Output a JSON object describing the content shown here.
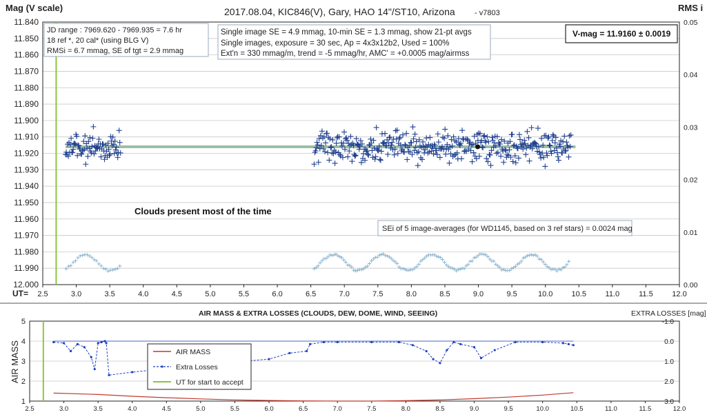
{
  "chart_data": [
    {
      "type": "scatter",
      "title": "2017.08.04,  KIC846(V),  Gary,  HAO  14\"/ST10,  Arizona",
      "version": "- v7803",
      "ylabel_left": "Mag (V scale)",
      "ylabel_right": "RMS i",
      "xlabel": "UT=",
      "x_range": [
        2.5,
        12.0
      ],
      "x_ticks": [
        "2.5",
        "3.0",
        "3.5",
        "4.0",
        "4.5",
        "5.0",
        "5.5",
        "6.0",
        "6.5",
        "7.0",
        "7.5",
        "8.0",
        "8.5",
        "9.0",
        "9.5",
        "10.0",
        "10.5",
        "11.0",
        "11.5",
        "12.0"
      ],
      "y_range": [
        12.0,
        11.84
      ],
      "y_ticks": [
        "11.840",
        "11.850",
        "11.860",
        "11.870",
        "11.880",
        "11.890",
        "11.900",
        "11.910",
        "11.920",
        "11.930",
        "11.940",
        "11.950",
        "11.960",
        "11.970",
        "11.980",
        "11.990",
        "12.000"
      ],
      "y2_range": [
        0.0,
        0.05
      ],
      "y2_ticks": [
        "0.05",
        "0.04",
        "0.03",
        "0.02",
        "0.01",
        "0.00"
      ],
      "grid": true,
      "info_box_left": [
        "JD range : 7969.620 - 7969.935 = 7.6 hr",
        "18 ref *, 20 cal* (using BLG V)",
        "RMSi = 6.7 mmag, SE of tgt = 2.9 mmag"
      ],
      "info_box_center": [
        "Single image SE = 4.9 mmag, 10-min SE = 1.3 mmag, show 21-pt avgs",
        "Single images, exposure = 30 sec, Ap = 4x3x12b2, Used = 100%",
        "Ext'n = 330 mmag/m, trend = -5 mmag/hr, AMC' = +0.0005 mag/airmss"
      ],
      "vmag_box": "V-mag = 11.9160 ± 0.0019",
      "annotation_clouds": "Clouds  present most of the time",
      "annotation_sei": "SEi of 5 image-averages (for WD1145, based on 3 ref stars) = 0.0024 mag",
      "mean_mag": 11.916,
      "start_ut": 2.7,
      "highlight_point": {
        "x": 8.99,
        "y": 11.916
      },
      "series": [
        {
          "role": "mag",
          "segments": [
            {
              "x_start": 2.84,
              "x_end": 3.66,
              "count": 80
            },
            {
              "x_start": 6.55,
              "x_end": 10.38,
              "count": 360
            }
          ],
          "center": 11.916,
          "spread": 0.016
        },
        {
          "role": "rms",
          "segments": [
            {
              "x_start": 2.85,
              "x_end": 3.65,
              "count": 24
            },
            {
              "x_start": 6.55,
              "x_end": 10.35,
              "count": 130
            }
          ],
          "y2_center": 0.0042,
          "y2_amplitude": 0.0015
        }
      ],
      "colors": {
        "mag": "#1f3f8f",
        "mean_line": "#8fb89a",
        "rms": "#8ab4cf",
        "start": "#8cc63f",
        "grid": "#c8c8c8"
      }
    },
    {
      "type": "line",
      "title": "AIR MASS & EXTRA LOSSES (CLOUDS, DEW, DOME, WIND, SEEING)",
      "ylabel_left": "AIR MASS",
      "ylabel_right": "EXTRA LOSSES [mag]",
      "x_range": [
        2.5,
        12.0
      ],
      "x_ticks": [
        "2.5",
        "3.0",
        "3.5",
        "4.0",
        "4.5",
        "5.0",
        "5.5",
        "6.0",
        "6.5",
        "7.0",
        "7.5",
        "8.0",
        "8.5",
        "9.0",
        "9.5",
        "10.0",
        "10.5",
        "11.0",
        "11.5",
        "12.0"
      ],
      "y_range": [
        1,
        5
      ],
      "y_ticks": [
        "1",
        "2",
        "3",
        "4",
        "5"
      ],
      "y2_range": [
        3.0,
        -1.0
      ],
      "y2_ticks": [
        "-1.0",
        "0.0",
        "1.0",
        "2.0",
        "3.0"
      ],
      "legend": [
        "AIR MASS",
        "Extra Losses",
        "UT for start to accept"
      ],
      "series": [
        {
          "name": "AIR MASS",
          "x": [
            2.85,
            3.5,
            4.0,
            4.5,
            5.0,
            5.5,
            6.0,
            6.5,
            7.0,
            7.5,
            8.0,
            8.5,
            9.0,
            9.5,
            10.0,
            10.45
          ],
          "y": [
            1.4,
            1.33,
            1.24,
            1.17,
            1.11,
            1.06,
            1.03,
            1.01,
            1.0,
            1.0,
            1.02,
            1.06,
            1.12,
            1.2,
            1.3,
            1.42
          ]
        },
        {
          "name": "Extra Losses",
          "x": [
            2.85,
            3.0,
            3.1,
            3.2,
            3.3,
            3.4,
            3.45,
            3.5,
            3.55,
            3.6,
            3.62,
            3.66,
            4.0,
            5.0,
            6.0,
            6.3,
            6.55,
            6.6,
            6.8,
            7.0,
            7.5,
            7.9,
            8.1,
            8.3,
            8.4,
            8.5,
            8.6,
            8.7,
            8.8,
            9.0,
            9.1,
            9.3,
            9.6,
            10.0,
            10.3,
            10.38,
            10.45
          ],
          "y": [
            0.05,
            0.1,
            0.5,
            0.15,
            0.3,
            0.8,
            1.4,
            0.1,
            0.05,
            0.0,
            0.1,
            1.7,
            1.55,
            1.2,
            0.9,
            0.6,
            0.5,
            0.15,
            0.05,
            0.05,
            0.05,
            0.05,
            0.2,
            0.5,
            0.9,
            1.1,
            0.45,
            0.05,
            0.15,
            0.3,
            0.85,
            0.45,
            0.05,
            0.05,
            0.1,
            0.15,
            0.2
          ]
        },
        {
          "name": "UT for start to accept",
          "x": [
            2.7,
            2.7
          ],
          "y": [
            1,
            5
          ]
        }
      ],
      "colors": {
        "airmass": "#c0392b",
        "losses": "#1f3fbf",
        "zero": "#1f3fbf",
        "start": "#8cc63f",
        "grid": "#c8c8c8"
      }
    }
  ]
}
